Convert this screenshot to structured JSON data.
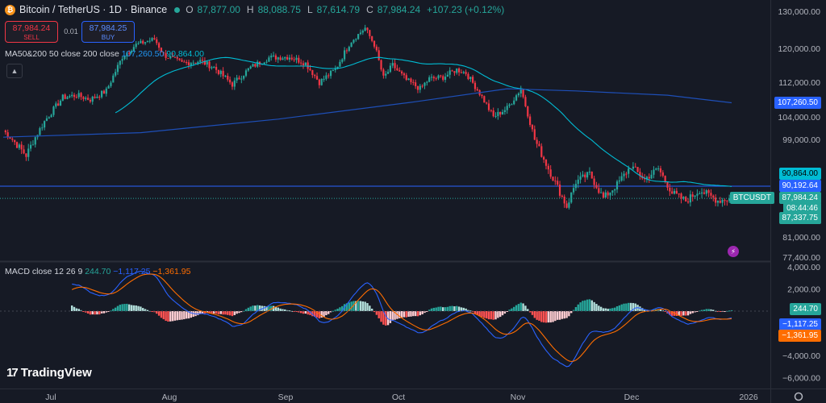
{
  "header": {
    "symbol": "Bitcoin / TetherUS · 1D · Binance",
    "open_label": "O",
    "open": "87,877.00",
    "high_label": "H",
    "high": "88,088.75",
    "low_label": "L",
    "low": "87,614.79",
    "close_label": "C",
    "close": "87,984.24",
    "change": "+107.23 (+0.12%)"
  },
  "trade": {
    "sell_price": "87,984.24",
    "sell_label": "SELL",
    "spread": "0.01",
    "buy_price": "87,984.25",
    "buy_label": "BUY"
  },
  "ma_legend": {
    "title": "MA50&200 50 close 200 close",
    "ma50": "107,260.50",
    "ma200": "90,864.00"
  },
  "macd_legend": {
    "title": "MACD close 12 26 9",
    "hist": "244.70",
    "macd": "−1,117.25",
    "signal": "−1,361.95"
  },
  "price_axis": {
    "ticks": [
      {
        "label": "130,000.00",
        "value": 130000
      },
      {
        "label": "120,000.00",
        "value": 120000
      },
      {
        "label": "112,000.00",
        "value": 112000
      },
      {
        "label": "104,000.00",
        "value": 104000
      },
      {
        "label": "99,000.00",
        "value": 99000
      },
      {
        "label": "81,000.00",
        "value": 81000
      },
      {
        "label": "77,400.00",
        "value": 77400
      }
    ],
    "tags": {
      "ma50": "107,260.50",
      "ma200": "90,864.00",
      "hline": "90,192.64",
      "symbol": "BTCUSDT",
      "last": "87,984.24",
      "countdown": "08:44:46",
      "low": "87,337.75"
    }
  },
  "macd_axis": {
    "ticks": [
      {
        "label": "4,000.00",
        "value": 4000
      },
      {
        "label": "2,000.00",
        "value": 2000
      },
      {
        "label": "−4,000.00",
        "value": -4000
      },
      {
        "label": "−6,000.00",
        "value": -6000
      }
    ],
    "tags": {
      "hist": "244.70",
      "macd": "−1,117.25",
      "signal": "−1,361.95"
    }
  },
  "time_axis": [
    "Jul",
    "Aug",
    "Sep",
    "Oct",
    "Nov",
    "Dec",
    "2026"
  ],
  "brand": {
    "name": "TradingView",
    "mark": "17"
  },
  "icons": {
    "logo": "bitcoin-icon",
    "collapse": "chevron-up-icon",
    "bolt": "lightning-icon",
    "settings": "gear-icon"
  },
  "colors": {
    "up": "#26a69a",
    "down": "#f23645",
    "ma50": "#2196f3",
    "ma200": "#00bcd4",
    "macd": "#2962ff",
    "signal": "#ff6d00",
    "hline": "#2962ff"
  }
}
